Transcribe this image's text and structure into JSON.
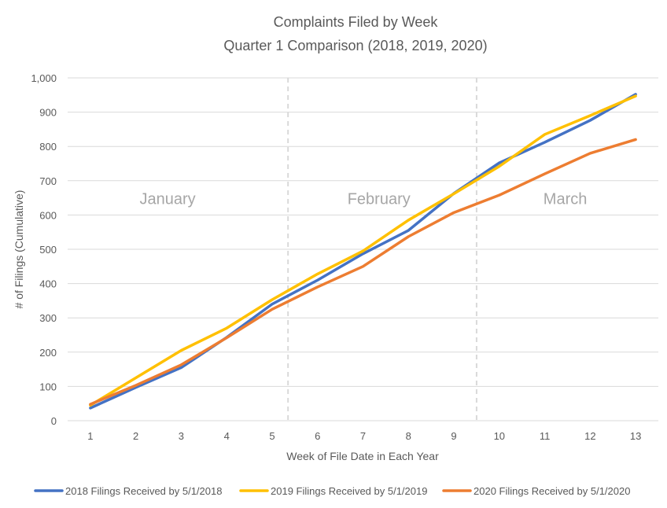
{
  "chart_data": {
    "type": "line",
    "title": "Complaints Filed by Week",
    "subtitle": "Quarter 1 Comparison (2018, 2019, 2020)",
    "xlabel": "Week of File Date in Each Year",
    "ylabel": "# of Filings (Cumulative)",
    "x": [
      1,
      2,
      3,
      4,
      5,
      6,
      7,
      8,
      9,
      10,
      11,
      12,
      13
    ],
    "ylim": [
      0,
      1000
    ],
    "yticks": [
      "0",
      "100",
      "200",
      "300",
      "400",
      "500",
      "600",
      "700",
      "800",
      "900",
      "1,000"
    ],
    "grid": true,
    "legend_position": "bottom",
    "series": [
      {
        "name": "2018 Filings Received by 5/1/2018",
        "color": "#4472C4",
        "values": [
          37,
          97,
          155,
          243,
          340,
          410,
          487,
          555,
          663,
          752,
          812,
          876,
          952
        ]
      },
      {
        "name": "2019 Filings Received by 5/1/2019",
        "color": "#FFC000",
        "values": [
          45,
          125,
          205,
          270,
          353,
          428,
          495,
          585,
          662,
          742,
          835,
          890,
          947
        ]
      },
      {
        "name": "2020 Filings Received by 5/1/2020",
        "color": "#ED7D31",
        "values": [
          48,
          103,
          163,
          242,
          325,
          390,
          450,
          537,
          607,
          658,
          720,
          780,
          820
        ]
      }
    ],
    "month_dividers": [
      5.35,
      9.5
    ],
    "annotations": [
      {
        "text": "January",
        "x": 2.7,
        "y": 650
      },
      {
        "text": "February",
        "x": 7.35,
        "y": 650
      },
      {
        "text": "March",
        "x": 11.45,
        "y": 650
      }
    ]
  }
}
